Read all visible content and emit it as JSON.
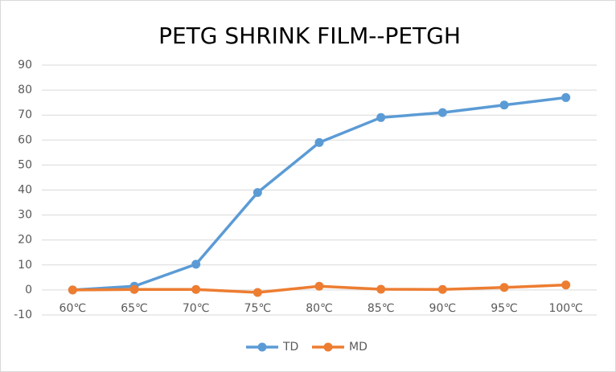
{
  "chart_data": {
    "type": "line",
    "title": "PETG SHRINK FILM--PETGH",
    "categories": [
      "60℃",
      "65℃",
      "70℃",
      "75℃",
      "80℃",
      "85℃",
      "90℃",
      "95℃",
      "100℃"
    ],
    "series": [
      {
        "name": "TD",
        "color": "#5b9bd5",
        "values": [
          0,
          1.5,
          10.3,
          39,
          59,
          69,
          71,
          74,
          77
        ]
      },
      {
        "name": "MD",
        "color": "#ed7d31",
        "values": [
          0,
          0.2,
          0.2,
          -1,
          1.5,
          0.3,
          0.2,
          1,
          2
        ]
      }
    ],
    "ylim": [
      -10,
      90
    ],
    "yticks": [
      -10,
      0,
      10,
      20,
      30,
      40,
      50,
      60,
      70,
      80,
      90
    ],
    "grid": true,
    "legend": "bottom"
  }
}
